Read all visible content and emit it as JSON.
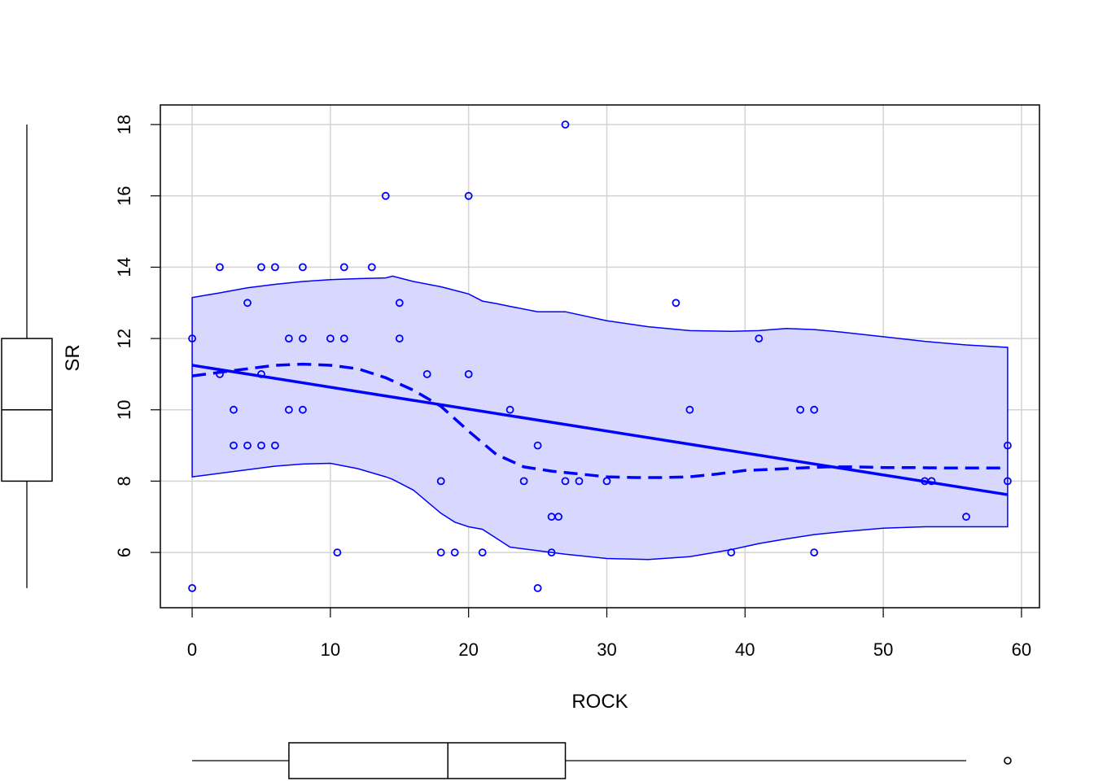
{
  "chart_data": {
    "type": "scatter",
    "title": "",
    "xlabel": "ROCK",
    "ylabel": "SR",
    "xlim": [
      -2.3,
      61.3
    ],
    "ylim": [
      4.45,
      18.55
    ],
    "x_ticks": [
      "0",
      "10",
      "20",
      "30",
      "40",
      "50",
      "60"
    ],
    "y_ticks": [
      "6",
      "8",
      "10",
      "12",
      "14",
      "16",
      "18"
    ],
    "grid": true,
    "colors": {
      "points": "#0000ff",
      "band_fill": "#d8d8ff",
      "lines": "#0000ff",
      "box": "#000000"
    },
    "points": [
      [
        0,
        12
      ],
      [
        0,
        5
      ],
      [
        2,
        14
      ],
      [
        2,
        11
      ],
      [
        3,
        10
      ],
      [
        3,
        9
      ],
      [
        4,
        13
      ],
      [
        4,
        9
      ],
      [
        5,
        14
      ],
      [
        5,
        11
      ],
      [
        5,
        9
      ],
      [
        6,
        14
      ],
      [
        6,
        9
      ],
      [
        7,
        12
      ],
      [
        7,
        10
      ],
      [
        8,
        14
      ],
      [
        8,
        12
      ],
      [
        8,
        10
      ],
      [
        10,
        12
      ],
      [
        10.5,
        6
      ],
      [
        11,
        14
      ],
      [
        11,
        12
      ],
      [
        13,
        14
      ],
      [
        14,
        16
      ],
      [
        15,
        13
      ],
      [
        15,
        12
      ],
      [
        17,
        11
      ],
      [
        18,
        8
      ],
      [
        18,
        6
      ],
      [
        19,
        6
      ],
      [
        20,
        16
      ],
      [
        20,
        11
      ],
      [
        21,
        6
      ],
      [
        23,
        10
      ],
      [
        24,
        8
      ],
      [
        25,
        9
      ],
      [
        25,
        5
      ],
      [
        26,
        7
      ],
      [
        26,
        6
      ],
      [
        26.5,
        7
      ],
      [
        27,
        18
      ],
      [
        27,
        8
      ],
      [
        28,
        8
      ],
      [
        30,
        8
      ],
      [
        35,
        13
      ],
      [
        36,
        10
      ],
      [
        39,
        6
      ],
      [
        41,
        12
      ],
      [
        44,
        10
      ],
      [
        45,
        10
      ],
      [
        45,
        6
      ],
      [
        53,
        8
      ],
      [
        53.5,
        8
      ],
      [
        56,
        7
      ],
      [
        59,
        9
      ],
      [
        59,
        8
      ]
    ],
    "linear_fit": {
      "x": [
        0,
        59
      ],
      "y": [
        11.25,
        7.62
      ]
    },
    "smooth_fit": {
      "x": [
        0,
        2,
        4,
        6,
        8,
        10,
        12,
        14,
        16,
        18,
        20,
        22,
        24,
        26,
        28,
        30,
        32,
        34,
        36,
        38,
        40,
        42,
        44,
        46,
        48,
        50,
        52,
        54,
        56,
        59
      ],
      "y": [
        10.95,
        11.05,
        11.15,
        11.25,
        11.28,
        11.25,
        11.15,
        10.9,
        10.55,
        10.1,
        9.4,
        8.75,
        8.4,
        8.28,
        8.2,
        8.12,
        8.1,
        8.1,
        8.12,
        8.2,
        8.3,
        8.33,
        8.37,
        8.4,
        8.4,
        8.38,
        8.38,
        8.37,
        8.37,
        8.37
      ]
    },
    "confidence_band": {
      "x": [
        0,
        2,
        4,
        6,
        8,
        10,
        12,
        14,
        14.5,
        16,
        18,
        19,
        20,
        21,
        22,
        23,
        25,
        27,
        30,
        33,
        36,
        39,
        41,
        43,
        45,
        47,
        50,
        53,
        56,
        59
      ],
      "upper": [
        13.15,
        13.28,
        13.42,
        13.52,
        13.6,
        13.65,
        13.68,
        13.7,
        13.75,
        13.6,
        13.45,
        13.35,
        13.25,
        13.05,
        12.98,
        12.9,
        12.75,
        12.75,
        12.5,
        12.33,
        12.22,
        12.2,
        12.22,
        12.28,
        12.25,
        12.18,
        12.05,
        11.92,
        11.82,
        11.75
      ],
      "lower": [
        8.12,
        8.22,
        8.32,
        8.42,
        8.48,
        8.5,
        8.35,
        8.12,
        8.05,
        7.75,
        7.1,
        6.85,
        6.72,
        6.65,
        6.4,
        6.15,
        6.05,
        5.95,
        5.83,
        5.8,
        5.88,
        6.08,
        6.25,
        6.38,
        6.5,
        6.58,
        6.68,
        6.72,
        6.72,
        6.72
      ]
    },
    "x_boxplot": {
      "whisker_low": 0,
      "q1": 7,
      "median": 18.5,
      "q3": 27,
      "whisker_high": 56,
      "outliers": [
        59
      ]
    },
    "y_boxplot": {
      "whisker_low": 5,
      "q1": 8,
      "median": 10,
      "q3": 12,
      "whisker_high": 18,
      "outliers": []
    }
  }
}
